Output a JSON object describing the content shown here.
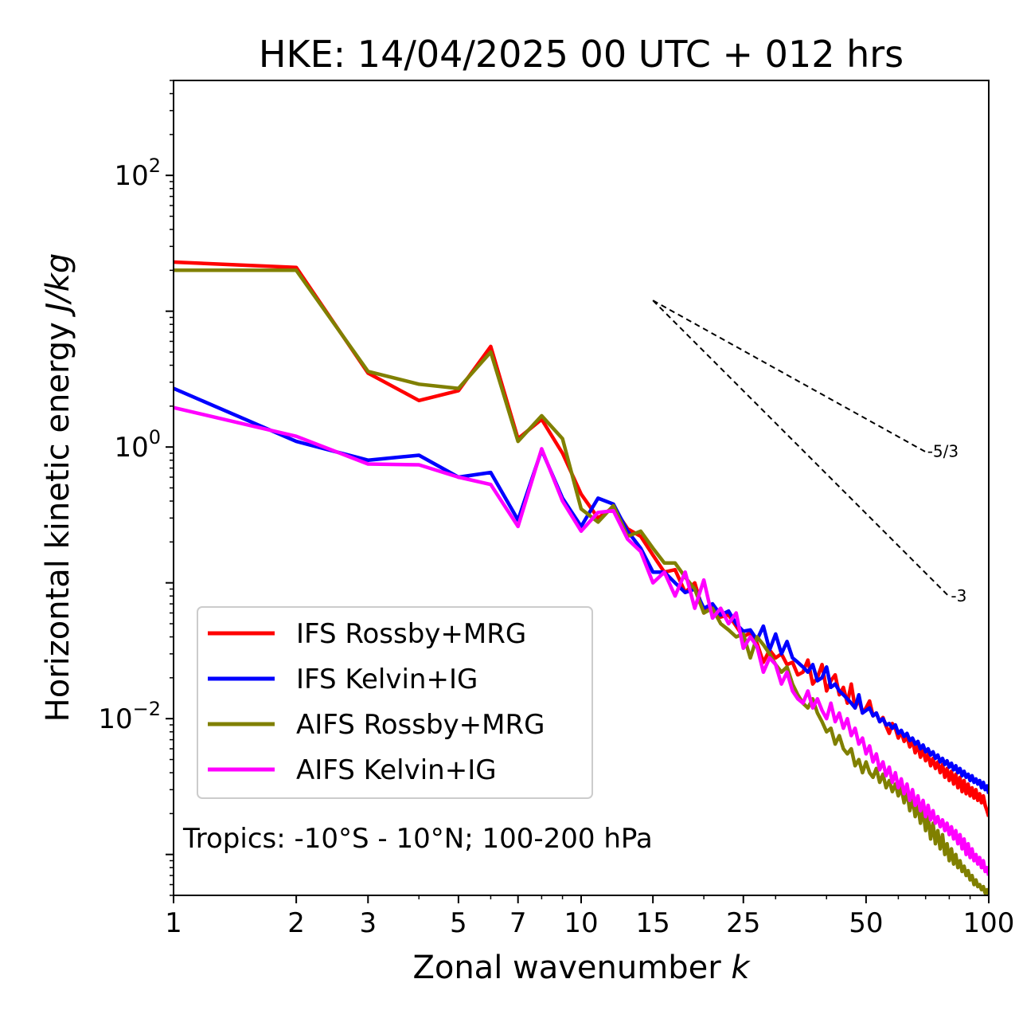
{
  "chart_data": {
    "type": "line",
    "title": "HKE: 14/04/2025 00 UTC + 012 hrs",
    "xlabel": "Zonal wavenumber ",
    "xlabel_italic": "k",
    "ylabel": "Horizontal kinetic energy ",
    "ylabel_italic": "J/kg",
    "x_scale": "log",
    "y_scale": "log",
    "xlim": [
      1,
      100
    ],
    "ylim": [
      0.0005,
      500
    ],
    "x_ticks": [
      1,
      2,
      3,
      5,
      7,
      10,
      15,
      25,
      50,
      100
    ],
    "x_tick_labels": [
      "1",
      "2",
      "3",
      "5",
      "7",
      "10",
      "15",
      "25",
      "50",
      "100"
    ],
    "y_ticks": [
      0.01,
      1,
      100
    ],
    "y_tick_labels": [
      {
        "base": "10",
        "exp": "−2"
      },
      {
        "base": "10",
        "exp": "0"
      },
      {
        "base": "10",
        "exp": "2"
      }
    ],
    "grid": false,
    "legend_position": "lower-left",
    "annotation": "Tropics: -10°S - 10°N; 100-200 hPa",
    "reference_lines": [
      {
        "label": "-5/3",
        "slope": -1.6667,
        "x_start": 15,
        "y_start": 12.0,
        "x_end": 70
      },
      {
        "label": "-3",
        "slope": -3,
        "x_start": 15,
        "y_start": 12.0,
        "x_end": 80
      }
    ],
    "series": [
      {
        "name": "IFS Rossby+MRG",
        "color": "#ff0000",
        "x": [
          1,
          2,
          3,
          4,
          5,
          6,
          7,
          8,
          9,
          10,
          11,
          12,
          13,
          14,
          15,
          16,
          17,
          18,
          19,
          20,
          21,
          22,
          23,
          24,
          25,
          26,
          27,
          28,
          29,
          30,
          31,
          32,
          33,
          34,
          35,
          36,
          37,
          38,
          39,
          40,
          41,
          42,
          43,
          44,
          45,
          46,
          47,
          48,
          49,
          50,
          51,
          52,
          53,
          54,
          55,
          56,
          57,
          58,
          59,
          60,
          61,
          62,
          63,
          64,
          65,
          66,
          67,
          68,
          69,
          70,
          71,
          72,
          73,
          74,
          75,
          76,
          77,
          78,
          79,
          80,
          81,
          82,
          83,
          84,
          85,
          86,
          87,
          88,
          89,
          90,
          91,
          92,
          93,
          94,
          95,
          96,
          97,
          98,
          99,
          100
        ],
        "y": [
          23.0,
          21.0,
          3.5,
          2.2,
          2.6,
          5.5,
          1.15,
          1.6,
          0.9,
          0.45,
          0.3,
          0.36,
          0.25,
          0.22,
          0.16,
          0.12,
          0.125,
          0.085,
          0.1,
          0.06,
          0.07,
          0.056,
          0.058,
          0.048,
          0.04,
          0.043,
          0.036,
          0.026,
          0.032,
          0.028,
          0.03,
          0.025,
          0.026,
          0.021,
          0.022,
          0.027,
          0.018,
          0.02,
          0.025,
          0.016,
          0.019,
          0.021,
          0.015,
          0.017,
          0.013,
          0.018,
          0.012,
          0.014,
          0.011,
          0.012,
          0.0135,
          0.0105,
          0.011,
          0.0095,
          0.0102,
          0.0088,
          0.0078,
          0.0092,
          0.0085,
          0.0072,
          0.008,
          0.0068,
          0.0074,
          0.0062,
          0.0069,
          0.0056,
          0.0064,
          0.0052,
          0.0059,
          0.0049,
          0.0055,
          0.0045,
          0.0051,
          0.0043,
          0.0048,
          0.004,
          0.0046,
          0.0037,
          0.0043,
          0.0035,
          0.0041,
          0.0033,
          0.0039,
          0.0031,
          0.0037,
          0.0029,
          0.0035,
          0.0028,
          0.0033,
          0.0027,
          0.0031,
          0.0026,
          0.003,
          0.0025,
          0.0028,
          0.0024,
          0.0027,
          0.0023,
          0.0021,
          0.0019
        ]
      },
      {
        "name": "IFS Kelvin+IG",
        "color": "#0000ff",
        "x": [
          1,
          2,
          3,
          4,
          5,
          6,
          7,
          8,
          9,
          10,
          11,
          12,
          13,
          14,
          15,
          16,
          17,
          18,
          19,
          20,
          21,
          22,
          23,
          24,
          25,
          26,
          27,
          28,
          29,
          30,
          31,
          32,
          33,
          34,
          35,
          36,
          37,
          38,
          39,
          40,
          41,
          42,
          43,
          44,
          45,
          46,
          47,
          48,
          49,
          50,
          51,
          52,
          53,
          54,
          55,
          56,
          57,
          58,
          59,
          60,
          61,
          62,
          63,
          64,
          65,
          66,
          67,
          68,
          69,
          70,
          71,
          72,
          73,
          74,
          75,
          76,
          77,
          78,
          79,
          80,
          81,
          82,
          83,
          84,
          85,
          86,
          87,
          88,
          89,
          90,
          91,
          92,
          93,
          94,
          95,
          96,
          97,
          98,
          99,
          100
        ],
        "y": [
          2.7,
          1.1,
          0.8,
          0.87,
          0.6,
          0.65,
          0.29,
          0.95,
          0.42,
          0.26,
          0.42,
          0.38,
          0.24,
          0.18,
          0.12,
          0.12,
          0.1,
          0.085,
          0.09,
          0.065,
          0.07,
          0.058,
          0.062,
          0.05,
          0.044,
          0.045,
          0.038,
          0.048,
          0.032,
          0.042,
          0.03,
          0.037,
          0.028,
          0.026,
          0.024,
          0.022,
          0.025,
          0.019,
          0.02,
          0.024,
          0.017,
          0.018,
          0.016,
          0.015,
          0.014,
          0.013,
          0.012,
          0.015,
          0.011,
          0.0115,
          0.012,
          0.0105,
          0.011,
          0.0095,
          0.01,
          0.009,
          0.0092,
          0.0085,
          0.009,
          0.0078,
          0.0082,
          0.0074,
          0.0078,
          0.0069,
          0.0072,
          0.0065,
          0.0068,
          0.006,
          0.0064,
          0.0057,
          0.006,
          0.0054,
          0.0057,
          0.0051,
          0.0054,
          0.0048,
          0.0051,
          0.0046,
          0.0049,
          0.0044,
          0.0047,
          0.0042,
          0.0045,
          0.004,
          0.0043,
          0.0038,
          0.0041,
          0.0037,
          0.0039,
          0.0035,
          0.0038,
          0.0034,
          0.0036,
          0.0033,
          0.0035,
          0.0031,
          0.0034,
          0.003,
          0.0032,
          0.0028
        ]
      },
      {
        "name": "AIFS Rossby+MRG",
        "color": "#808000",
        "x": [
          1,
          2,
          3,
          4,
          5,
          6,
          7,
          8,
          9,
          10,
          11,
          12,
          13,
          14,
          15,
          16,
          17,
          18,
          19,
          20,
          21,
          22,
          23,
          24,
          25,
          26,
          27,
          28,
          29,
          30,
          31,
          32,
          33,
          34,
          35,
          36,
          37,
          38,
          39,
          40,
          41,
          42,
          43,
          44,
          45,
          46,
          47,
          48,
          49,
          50,
          51,
          52,
          53,
          54,
          55,
          56,
          57,
          58,
          59,
          60,
          61,
          62,
          63,
          64,
          65,
          66,
          67,
          68,
          69,
          70,
          71,
          72,
          73,
          74,
          75,
          76,
          77,
          78,
          79,
          80,
          81,
          82,
          83,
          84,
          85,
          86,
          87,
          88,
          89,
          90,
          91,
          92,
          93,
          94,
          95,
          96,
          97,
          98,
          99,
          100
        ],
        "y": [
          20.0,
          20.0,
          3.6,
          2.9,
          2.7,
          5.0,
          1.1,
          1.7,
          1.15,
          0.35,
          0.28,
          0.37,
          0.22,
          0.24,
          0.18,
          0.14,
          0.14,
          0.11,
          0.09,
          0.06,
          0.065,
          0.05,
          0.045,
          0.04,
          0.042,
          0.028,
          0.04,
          0.035,
          0.03,
          0.025,
          0.022,
          0.024,
          0.018,
          0.015,
          0.013,
          0.012,
          0.014,
          0.011,
          0.0095,
          0.008,
          0.0085,
          0.0065,
          0.0075,
          0.006,
          0.0055,
          0.006,
          0.0045,
          0.005,
          0.004,
          0.0048,
          0.004,
          0.0037,
          0.0043,
          0.0034,
          0.0039,
          0.0031,
          0.0035,
          0.0029,
          0.0033,
          0.0027,
          0.0031,
          0.0024,
          0.0029,
          0.0021,
          0.0026,
          0.0019,
          0.0023,
          0.0017,
          0.0021,
          0.0015,
          0.0019,
          0.0013,
          0.0017,
          0.0012,
          0.0015,
          0.0011,
          0.0014,
          0.001,
          0.0012,
          0.0009,
          0.0011,
          0.00085,
          0.001,
          0.0008,
          0.0009,
          0.00075,
          0.00082,
          0.0007,
          0.00076,
          0.00065,
          0.0007,
          0.0006,
          0.00065,
          0.00058,
          0.0006,
          0.00055,
          0.00058,
          0.00052,
          0.00055,
          0.0005
        ]
      },
      {
        "name": "AIFS Kelvin+IG",
        "color": "#ff00ff",
        "x": [
          1,
          2,
          3,
          4,
          5,
          6,
          7,
          8,
          9,
          10,
          11,
          12,
          13,
          14,
          15,
          16,
          17,
          18,
          19,
          20,
          21,
          22,
          23,
          24,
          25,
          26,
          27,
          28,
          29,
          30,
          31,
          32,
          33,
          34,
          35,
          36,
          37,
          38,
          39,
          40,
          41,
          42,
          43,
          44,
          45,
          46,
          47,
          48,
          49,
          50,
          51,
          52,
          53,
          54,
          55,
          56,
          57,
          58,
          59,
          60,
          61,
          62,
          63,
          64,
          65,
          66,
          67,
          68,
          69,
          70,
          71,
          72,
          73,
          74,
          75,
          76,
          77,
          78,
          79,
          80,
          81,
          82,
          83,
          84,
          85,
          86,
          87,
          88,
          89,
          90,
          91,
          92,
          93,
          94,
          95,
          96,
          97,
          98,
          99,
          100
        ],
        "y": [
          1.95,
          1.2,
          0.75,
          0.74,
          0.6,
          0.53,
          0.26,
          0.97,
          0.4,
          0.24,
          0.33,
          0.34,
          0.21,
          0.17,
          0.1,
          0.12,
          0.08,
          0.12,
          0.065,
          0.105,
          0.055,
          0.065,
          0.05,
          0.06,
          0.033,
          0.04,
          0.034,
          0.022,
          0.028,
          0.025,
          0.018,
          0.022,
          0.016,
          0.014,
          0.013,
          0.016,
          0.012,
          0.014,
          0.0115,
          0.01,
          0.013,
          0.0095,
          0.011,
          0.0085,
          0.01,
          0.0075,
          0.0085,
          0.0065,
          0.0072,
          0.0055,
          0.0063,
          0.0048,
          0.0055,
          0.0042,
          0.0048,
          0.0038,
          0.0044,
          0.0034,
          0.004,
          0.0031,
          0.0036,
          0.0028,
          0.0033,
          0.0025,
          0.003,
          0.0023,
          0.0027,
          0.0021,
          0.0025,
          0.0019,
          0.0023,
          0.0018,
          0.0021,
          0.0017,
          0.0019,
          0.0016,
          0.0018,
          0.0015,
          0.0017,
          0.0014,
          0.0016,
          0.0013,
          0.0015,
          0.0012,
          0.0014,
          0.0011,
          0.0013,
          0.001,
          0.0012,
          0.00095,
          0.0011,
          0.0009,
          0.001,
          0.00085,
          0.00095,
          0.0008,
          0.0009,
          0.00075,
          0.0008,
          0.0007
        ]
      }
    ]
  }
}
